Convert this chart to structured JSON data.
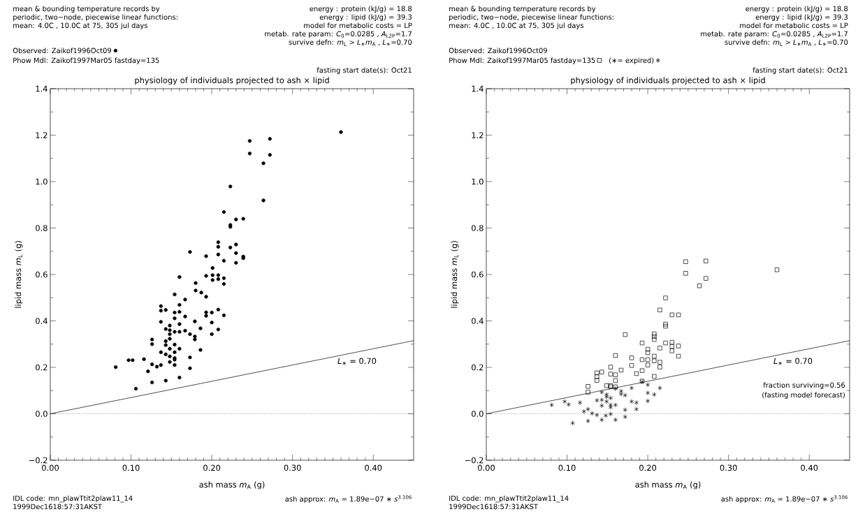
{
  "chart_data": [
    {
      "type": "scatter",
      "title": "physiology of individuals projected to ash × lipid",
      "xlabel": "ash mass  *m*$_{A}$ (g)",
      "ylabel": "lipid mass  *m*$_{L}$ (g)",
      "legend": "top left",
      "xlim": [
        0,
        0.45
      ],
      "ylim": [
        -0.2,
        1.4
      ],
      "xticks": [
        {
          "value": 0,
          "label": "0.00"
        },
        {
          "value": 0.1,
          "label": "0.10"
        },
        {
          "value": 0.2,
          "label": "0.20"
        },
        {
          "value": 0.3,
          "label": "0.30"
        },
        {
          "value": 0.4,
          "label": "0.40"
        }
      ],
      "yticks": [
        {
          "value": -0.2,
          "label": "−0.2"
        },
        {
          "value": 0,
          "label": "0.0"
        },
        0.2,
        0.4,
        0.6,
        0.8,
        {
          "value": 1,
          "label": "1.0"
        },
        1.2,
        1.4
      ],
      "series": [
        {
          "name": "Observed: Zaikof1996Oct09",
          "marker": "circle",
          "color": "#000000",
          "x": [
            0.36,
            0.247,
            0.272,
            0.247,
            0.272,
            0.264,
            0.223,
            0.264,
            0.215,
            0.23,
            0.239,
            0.223,
            0.223,
            0.173,
            0.208,
            0.208,
            0.223,
            0.23,
            0.193,
            0.208,
            0.23,
            0.239,
            0.239,
            0.215,
            0.23,
            0.201,
            0.16,
            0.193,
            0.201,
            0.208,
            0.208,
            0.201,
            0.215,
            0.215,
            0.18,
            0.18,
            0.187,
            0.193,
            0.154,
            0.167,
            0.16,
            0.137,
            0.137,
            0.143,
            0.154,
            0.16,
            0.167,
            0.154,
            0.193,
            0.193,
            0.2,
            0.208,
            0.215,
            0.137,
            0.148,
            0.16,
            0.179,
            0.2,
            0.143,
            0.148,
            0.154,
            0.16,
            0.167,
            0.186,
            0.208,
            0.148,
            0.173,
            0.2,
            0.179,
            0.179,
            0.148,
            0.126,
            0.126,
            0.143,
            0.143,
            0.154,
            0.148,
            0.16,
            0.186,
            0.137,
            0.143,
            0.154,
            0.148,
            0.154,
            0.154,
            0.173,
            0.097,
            0.102,
            0.116,
            0.148,
            0.154,
            0.126,
            0.132,
            0.137,
            0.081,
            0.121,
            0.173,
            0.16,
            0.126,
            0.143,
            0.106
          ],
          "values": [
            1.213,
            1.175,
            1.184,
            1.121,
            1.115,
            1.079,
            0.979,
            0.919,
            0.869,
            0.837,
            0.84,
            0.813,
            0.805,
            0.697,
            0.739,
            0.719,
            0.716,
            0.729,
            0.679,
            0.686,
            0.692,
            0.677,
            0.67,
            0.659,
            0.65,
            0.628,
            0.589,
            0.594,
            0.597,
            0.597,
            0.58,
            0.576,
            0.584,
            0.559,
            0.563,
            0.531,
            0.522,
            0.504,
            0.514,
            0.492,
            0.469,
            0.464,
            0.444,
            0.447,
            0.436,
            0.439,
            0.419,
            0.411,
            0.437,
            0.422,
            0.436,
            0.449,
            0.424,
            0.396,
            0.38,
            0.386,
            0.398,
            0.393,
            0.365,
            0.36,
            0.353,
            0.353,
            0.358,
            0.368,
            0.363,
            0.343,
            0.343,
            0.343,
            0.333,
            0.32,
            0.323,
            0.32,
            0.3,
            0.313,
            0.296,
            0.298,
            0.28,
            0.28,
            0.275,
            0.265,
            0.256,
            0.265,
            0.247,
            0.24,
            0.233,
            0.243,
            0.231,
            0.231,
            0.235,
            0.223,
            0.21,
            0.213,
            0.203,
            0.21,
            0.201,
            0.183,
            0.196,
            0.156,
            0.135,
            0.143,
            0.108
          ]
        },
        {
          "type": "line",
          "line_style": "solid",
          "color": "#000000",
          "x": [
            0,
            0.45
          ],
          "values": [
            0,
            0.315
          ]
        }
      ],
      "ref_lines": [
        {
          "axis": "y",
          "value": 0,
          "line_style": "dotted",
          "color": "#000000"
        }
      ],
      "annotations": [
        "mean & bounding temperature records by",
        "periodic, two−node, piecewise linear functions:",
        "mean: 4.0C , 10.0C  at  75, 305 jul days",
        "energy : protein (kJ/g) = 18.8",
        "energy : lipid (kJ/g) = 39.3",
        "model for metabolic costs = LP",
        "metab. rate param: *C*$_{0}$=0.0285 , *A*$_{L2P}$=1.7",
        "survive defn: *m*$_{L}$ > *L*$_{∗}$*m*$_{A}$ ,  *L*$_{∗}$=0.70",
        "fasting start date(s):  Oct21",
        "IDL code:  mn_plawTtit2plaw11_14",
        "1999Dec1618:57:31AKST",
        "ash approx:  *m*$_{A}$ = 1.89e−07 ∗ *s*$^{3.106}$",
        "*L*$_{∗}$ = 0.70",
        "Phow Mdl: Zaikof1997Mar05 fastday=135"
      ]
    },
    {
      "type": "scatter",
      "title": "physiology of individuals projected to ash × lipid",
      "xlabel": "ash mass  *m*$_{A}$ (g)",
      "ylabel": "lipid mass  *m*$_{L}$ (g)",
      "legend": "top left",
      "xlim": [
        0,
        0.45
      ],
      "ylim": [
        -0.2,
        1.4
      ],
      "xticks": [
        {
          "value": 0,
          "label": "0.00"
        },
        {
          "value": 0.1,
          "label": "0.10"
        },
        {
          "value": 0.2,
          "label": "0.20"
        },
        {
          "value": 0.3,
          "label": "0.30"
        },
        {
          "value": 0.4,
          "label": "0.40"
        }
      ],
      "yticks": [
        {
          "value": -0.2,
          "label": "−0.2"
        },
        {
          "value": 0,
          "label": "0.0"
        },
        0.2,
        0.4,
        0.6,
        0.8,
        {
          "value": 1,
          "label": "1.0"
        },
        1.2,
        1.4
      ],
      "series": [
        {
          "name": "Phow Mdl: Zaikof1997Mar05 fastday=135",
          "marker": "square",
          "color": "#000000",
          "x": [
            0.247,
            0.272,
            0.247,
            0.272,
            0.264,
            0.222,
            0.36,
            0.215,
            0.23,
            0.238,
            0.222,
            0.222,
            0.172,
            0.208,
            0.208,
            0.208,
            0.193,
            0.222,
            0.23,
            0.23,
            0.23,
            0.238,
            0.215,
            0.2,
            0.2,
            0.238,
            0.16,
            0.18,
            0.208,
            0.208,
            0.193,
            0.2,
            0.215,
            0.215,
            0.2,
            0.18,
            0.154,
            0.167,
            0.193,
            0.186,
            0.137,
            0.137,
            0.137,
            0.143,
            0.154,
            0.16,
            0.208,
            0.16,
            0.193,
            0.126,
            0.126,
            0.149,
            0.154,
            0.154,
            0.16
          ],
          "values": [
            0.655,
            0.658,
            0.605,
            0.583,
            0.551,
            0.499,
            0.62,
            0.447,
            0.426,
            0.426,
            0.386,
            0.377,
            0.341,
            0.344,
            0.333,
            0.32,
            0.305,
            0.305,
            0.308,
            0.29,
            0.271,
            0.292,
            0.283,
            0.278,
            0.263,
            0.248,
            0.251,
            0.241,
            0.248,
            0.228,
            0.233,
            0.233,
            0.222,
            0.201,
            0.21,
            0.208,
            0.201,
            0.188,
            0.186,
            0.173,
            0.176,
            0.16,
            0.144,
            0.18,
            0.171,
            0.168,
            0.161,
            0.143,
            0.141,
            0.118,
            0.093,
            0.121,
            0.121,
            0.116,
            0.116
          ]
        },
        {
          "name": "(∗= expired)",
          "marker": "cross",
          "color": "#000000",
          "x": [
            0.18,
            0.193,
            0.2,
            0.215,
            0.143,
            0.149,
            0.149,
            0.154,
            0.16,
            0.167,
            0.167,
            0.172,
            0.2,
            0.208,
            0.2,
            0.137,
            0.143,
            0.149,
            0.18,
            0.186,
            0.143,
            0.154,
            0.154,
            0.16,
            0.081,
            0.097,
            0.102,
            0.116,
            0.121,
            0.126,
            0.131,
            0.137,
            0.148,
            0.154,
            0.172,
            0.186,
            0.172,
            0.107,
            0.126,
            0.143,
            0.16
          ],
          "values": [
            0.111,
            0.138,
            0.125,
            0.111,
            0.093,
            0.083,
            0.073,
            0.068,
            0.108,
            0.098,
            0.085,
            0.08,
            0.09,
            0.083,
            0.055,
            0.058,
            0.06,
            0.053,
            0.053,
            0.048,
            0.035,
            0.038,
            0.028,
            0.038,
            0.038,
            0.053,
            0.04,
            0.048,
            0.01,
            0.02,
            0.002,
            -0.005,
            -0.008,
            -0.001,
            0.017,
            0.02,
            -0.013,
            -0.04,
            -0.031,
            -0.026,
            -0.026
          ]
        },
        {
          "type": "line",
          "line_style": "solid",
          "color": "#000000",
          "x": [
            0,
            0.45
          ],
          "values": [
            0,
            0.315
          ]
        }
      ],
      "ref_lines": [
        {
          "axis": "y",
          "value": 0,
          "line_style": "dotted",
          "color": "#000000"
        }
      ],
      "annotations": [
        "mean & bounding temperature records by",
        "periodic, two−node, piecewise linear functions:",
        "mean: 4.0C , 10.0C  at  75, 305 jul days",
        "energy : protein (kJ/g) = 18.8",
        "energy : lipid (kJ/g) = 39.3",
        "model for metabolic costs = LP",
        "metab. rate param: *C*$_{0}$=0.0285 , *A*$_{L2P}$=1.7",
        "survive defn: *m*$_{L}$ > *L*$_{∗}$*m*$_{A}$ ,  *L*$_{∗}$=0.70",
        "fasting start date(s):  Oct21",
        "IDL code:  mn_plawTtit2plaw11_14",
        "1999Dec1618:57:31AKST",
        "ash approx:  *m*$_{A}$ = 1.89e−07 ∗ *s*$^{3.106}$",
        "*L*$_{∗}$ = 0.70",
        "Observed: Zaikof1996Oct09",
        "fraction surviving=0.56",
        "(fasting model forecast)"
      ]
    }
  ]
}
